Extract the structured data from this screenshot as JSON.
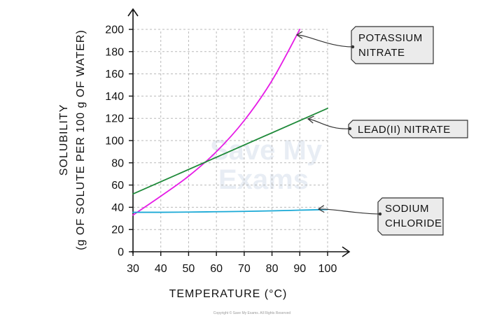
{
  "chart_data": {
    "type": "line",
    "xlabel": "TEMPERATURE (°C)",
    "ylabel_line1": "SOLUBILITY",
    "ylabel_line2": "(g OF SOLUTE PER 100 g OF WATER)",
    "xlim": [
      30,
      100
    ],
    "ylim": [
      0,
      200
    ],
    "x_ticks": [
      30,
      40,
      50,
      60,
      70,
      80,
      90,
      100
    ],
    "y_ticks": [
      0,
      20,
      40,
      60,
      80,
      100,
      120,
      140,
      160,
      180,
      200
    ],
    "grid": true,
    "series": [
      {
        "name": "POTASSIUM NITRATE",
        "label_lines": [
          "POTASSIUM",
          "NITRATE"
        ],
        "color": "#e61ce6",
        "x": [
          30,
          40,
          50,
          60,
          70,
          80,
          90
        ],
        "y": [
          33,
          50,
          68,
          90,
          118,
          154,
          200
        ]
      },
      {
        "name": "LEAD(II) NITRATE",
        "label_lines": [
          "LEAD(II)  NITRATE"
        ],
        "color": "#1f8a3a",
        "x": [
          30,
          100
        ],
        "y": [
          52,
          129
        ]
      },
      {
        "name": "SODIUM CHLORIDE",
        "label_lines": [
          "SODIUM",
          "CHLORIDE"
        ],
        "color": "#1aa9d6",
        "x": [
          30,
          40,
          50,
          60,
          70,
          80,
          90,
          100
        ],
        "y": [
          35.5,
          35.5,
          35.7,
          36,
          36.3,
          36.8,
          37.4,
          38
        ]
      }
    ]
  },
  "watermark": [
    "Save My",
    "Exams"
  ],
  "copyright": "Copyright © Save My Exams. All Rights Reserved"
}
